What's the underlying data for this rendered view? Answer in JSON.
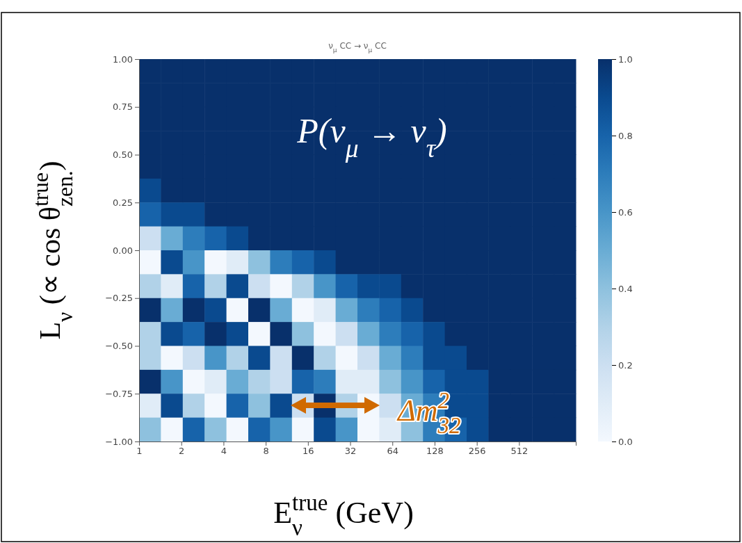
{
  "chart_data": {
    "type": "heatmap",
    "title": "ν$_{μ}$ CC → ν$_{μ}$ CC",
    "xlabel": "E$^{true}$$_{ν}$ (GeV)",
    "ylabel": "L$_{ν}$ (∝ cos θ$^{true}$$_{zen.}$)",
    "annotations": [
      "P(ν$_{μ}$ → ν$_{τ}$)",
      "Δm$^{2}$$_{32}$"
    ],
    "log": "x",
    "xlim": [
      1,
      1300
    ],
    "xticks": [
      1,
      2,
      4,
      8,
      16,
      32,
      64,
      128,
      256,
      512
    ],
    "ylim": [
      -1,
      1
    ],
    "yticks": [
      {
        "value": -1,
        "label": "−1.00"
      },
      {
        "value": -0.75,
        "label": "−0.75"
      },
      {
        "value": -0.5,
        "label": "−0.50"
      },
      {
        "value": -0.25,
        "label": "−0.25"
      },
      {
        "value": 0,
        "label": "0.00"
      },
      {
        "value": 0.25,
        "label": "0.25"
      },
      {
        "value": 0.5,
        "label": "0.50"
      },
      {
        "value": 0.75,
        "label": "0.75"
      },
      {
        "value": 1,
        "label": "1.00"
      }
    ],
    "clim": [
      0,
      1
    ],
    "cticks": [
      {
        "value": 0,
        "label": "0.0"
      },
      {
        "value": 0.2,
        "label": "0.2"
      },
      {
        "value": 0.4,
        "label": "0.4"
      },
      {
        "value": 0.6,
        "label": "0.6"
      },
      {
        "value": 0.8,
        "label": "0.8"
      },
      {
        "value": 1,
        "label": "1.0"
      }
    ],
    "cells": [
      [
        1.0,
        1.0,
        1.0,
        1.0,
        1.0,
        1.0,
        1.0,
        1.0,
        1.0,
        1.0,
        1.0,
        1.0,
        1.0,
        1.0,
        1.0,
        1.0,
        1.0,
        1.0,
        1.0,
        1.0
      ],
      [
        1.0,
        1.0,
        1.0,
        1.0,
        1.0,
        1.0,
        1.0,
        1.0,
        1.0,
        1.0,
        1.0,
        1.0,
        1.0,
        1.0,
        1.0,
        1.0,
        1.0,
        1.0,
        1.0,
        1.0
      ],
      [
        1.0,
        1.0,
        1.0,
        1.0,
        1.0,
        1.0,
        1.0,
        1.0,
        1.0,
        1.0,
        1.0,
        1.0,
        1.0,
        1.0,
        1.0,
        1.0,
        1.0,
        1.0,
        1.0,
        1.0
      ],
      [
        1.0,
        1.0,
        1.0,
        1.0,
        1.0,
        1.0,
        1.0,
        1.0,
        1.0,
        1.0,
        1.0,
        1.0,
        1.0,
        1.0,
        1.0,
        1.0,
        1.0,
        1.0,
        1.0,
        1.0
      ],
      [
        1.0,
        1.0,
        1.0,
        1.0,
        1.0,
        1.0,
        1.0,
        1.0,
        1.0,
        1.0,
        1.0,
        1.0,
        1.0,
        1.0,
        1.0,
        1.0,
        1.0,
        1.0,
        1.0,
        1.0
      ],
      [
        0.9,
        1.0,
        1.0,
        1.0,
        1.0,
        1.0,
        1.0,
        1.0,
        1.0,
        1.0,
        1.0,
        1.0,
        1.0,
        1.0,
        1.0,
        1.0,
        1.0,
        1.0,
        1.0,
        1.0
      ],
      [
        0.8,
        0.9,
        0.9,
        1.0,
        1.0,
        1.0,
        1.0,
        1.0,
        1.0,
        1.0,
        1.0,
        1.0,
        1.0,
        1.0,
        1.0,
        1.0,
        1.0,
        1.0,
        1.0,
        1.0
      ],
      [
        0.2,
        0.5,
        0.7,
        0.8,
        0.9,
        1.0,
        1.0,
        1.0,
        1.0,
        1.0,
        1.0,
        1.0,
        1.0,
        1.0,
        1.0,
        1.0,
        1.0,
        1.0,
        1.0,
        1.0
      ],
      [
        0.0,
        0.9,
        0.6,
        0.0,
        0.1,
        0.4,
        0.7,
        0.8,
        0.9,
        1.0,
        1.0,
        1.0,
        1.0,
        1.0,
        1.0,
        1.0,
        1.0,
        1.0,
        1.0,
        1.0
      ],
      [
        0.3,
        0.1,
        0.8,
        0.3,
        0.9,
        0.2,
        0.0,
        0.3,
        0.6,
        0.8,
        0.9,
        0.9,
        1.0,
        1.0,
        1.0,
        1.0,
        1.0,
        1.0,
        1.0,
        1.0
      ],
      [
        1.0,
        0.5,
        1.0,
        0.9,
        0.0,
        1.0,
        0.5,
        0.0,
        0.1,
        0.5,
        0.7,
        0.8,
        0.9,
        1.0,
        1.0,
        1.0,
        1.0,
        1.0,
        1.0,
        1.0
      ],
      [
        0.3,
        0.9,
        0.8,
        1.0,
        0.9,
        0.0,
        1.0,
        0.4,
        0.0,
        0.2,
        0.5,
        0.7,
        0.8,
        0.9,
        1.0,
        1.0,
        1.0,
        1.0,
        1.0,
        1.0
      ],
      [
        0.3,
        0.0,
        0.2,
        0.6,
        0.3,
        0.9,
        0.2,
        1.0,
        0.3,
        0.0,
        0.2,
        0.5,
        0.7,
        0.9,
        0.9,
        1.0,
        1.0,
        1.0,
        1.0,
        1.0
      ],
      [
        1.0,
        0.6,
        0.0,
        0.1,
        0.5,
        0.3,
        0.2,
        0.8,
        0.7,
        0.1,
        0.1,
        0.4,
        0.6,
        0.8,
        0.9,
        0.9,
        1.0,
        1.0,
        1.0,
        1.0
      ],
      [
        0.1,
        0.9,
        0.3,
        0.0,
        0.8,
        0.4,
        0.9,
        0.2,
        1.0,
        0.3,
        0.0,
        0.2,
        0.5,
        0.7,
        0.9,
        0.9,
        1.0,
        1.0,
        1.0,
        1.0
      ],
      [
        0.4,
        0.0,
        0.8,
        0.4,
        0.0,
        0.8,
        0.6,
        0.0,
        0.9,
        0.6,
        0.0,
        0.1,
        0.4,
        0.7,
        0.8,
        0.9,
        1.0,
        1.0,
        1.0,
        1.0
      ]
    ]
  }
}
